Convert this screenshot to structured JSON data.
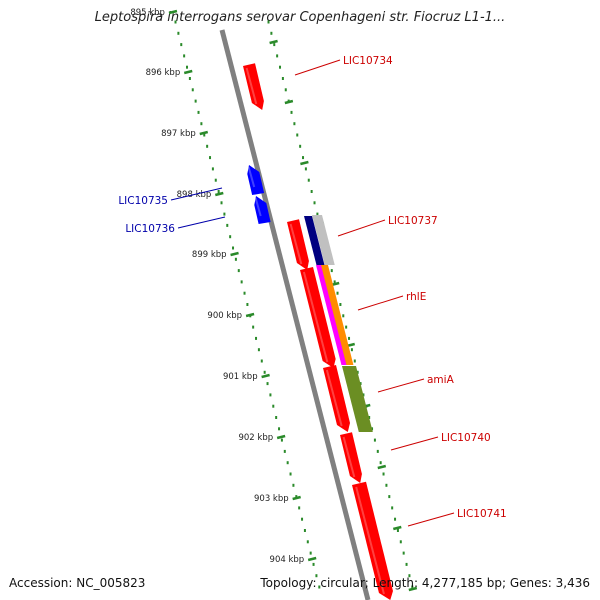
{
  "title": "Leptospira interrogans serovar Copenhageni str. Fiocruz L1-1...",
  "footer": {
    "accession": "Accession: NC_005823",
    "summary": "Topology: circular; Length: 4,277,185 bp; Genes: 3,436"
  },
  "colors": {
    "background": "#ffffff",
    "backbone": "#808080",
    "tick": "#2a8a2a",
    "forward_gene": "#ff0000",
    "reverse_gene": "#0000ff",
    "label_red": "#cc0000",
    "label_blue": "#0000aa",
    "feature_navy": "#000080",
    "feature_orange": "#ff8c00",
    "feature_magenta": "#ff00ff",
    "feature_olive": "#6b8e23",
    "feature_grey": "#c0c0c0"
  },
  "ruler": {
    "unit": "kbp",
    "ticks": [
      "895 kbp",
      "896 kbp",
      "897 kbp",
      "898 kbp",
      "899 kbp",
      "900 kbp",
      "901 kbp",
      "902 kbp",
      "903 kbp",
      "904 kbp"
    ]
  },
  "genes": [
    {
      "name": "LIC10734",
      "strand": "forward",
      "color": "#ff0000"
    },
    {
      "name": "LIC10735",
      "strand": "reverse",
      "color": "#0000ff"
    },
    {
      "name": "LIC10736",
      "strand": "reverse",
      "color": "#0000ff"
    },
    {
      "name": "LIC10737",
      "strand": "forward",
      "color": "#ff0000"
    },
    {
      "name": "rhlE",
      "strand": "forward",
      "color": "#ff0000"
    },
    {
      "name": "amiA",
      "strand": "forward",
      "color": "#ff0000"
    },
    {
      "name": "LIC10740",
      "strand": "forward",
      "color": "#ff0000"
    },
    {
      "name": "LIC10741",
      "strand": "forward",
      "color": "#ff0000"
    }
  ]
}
